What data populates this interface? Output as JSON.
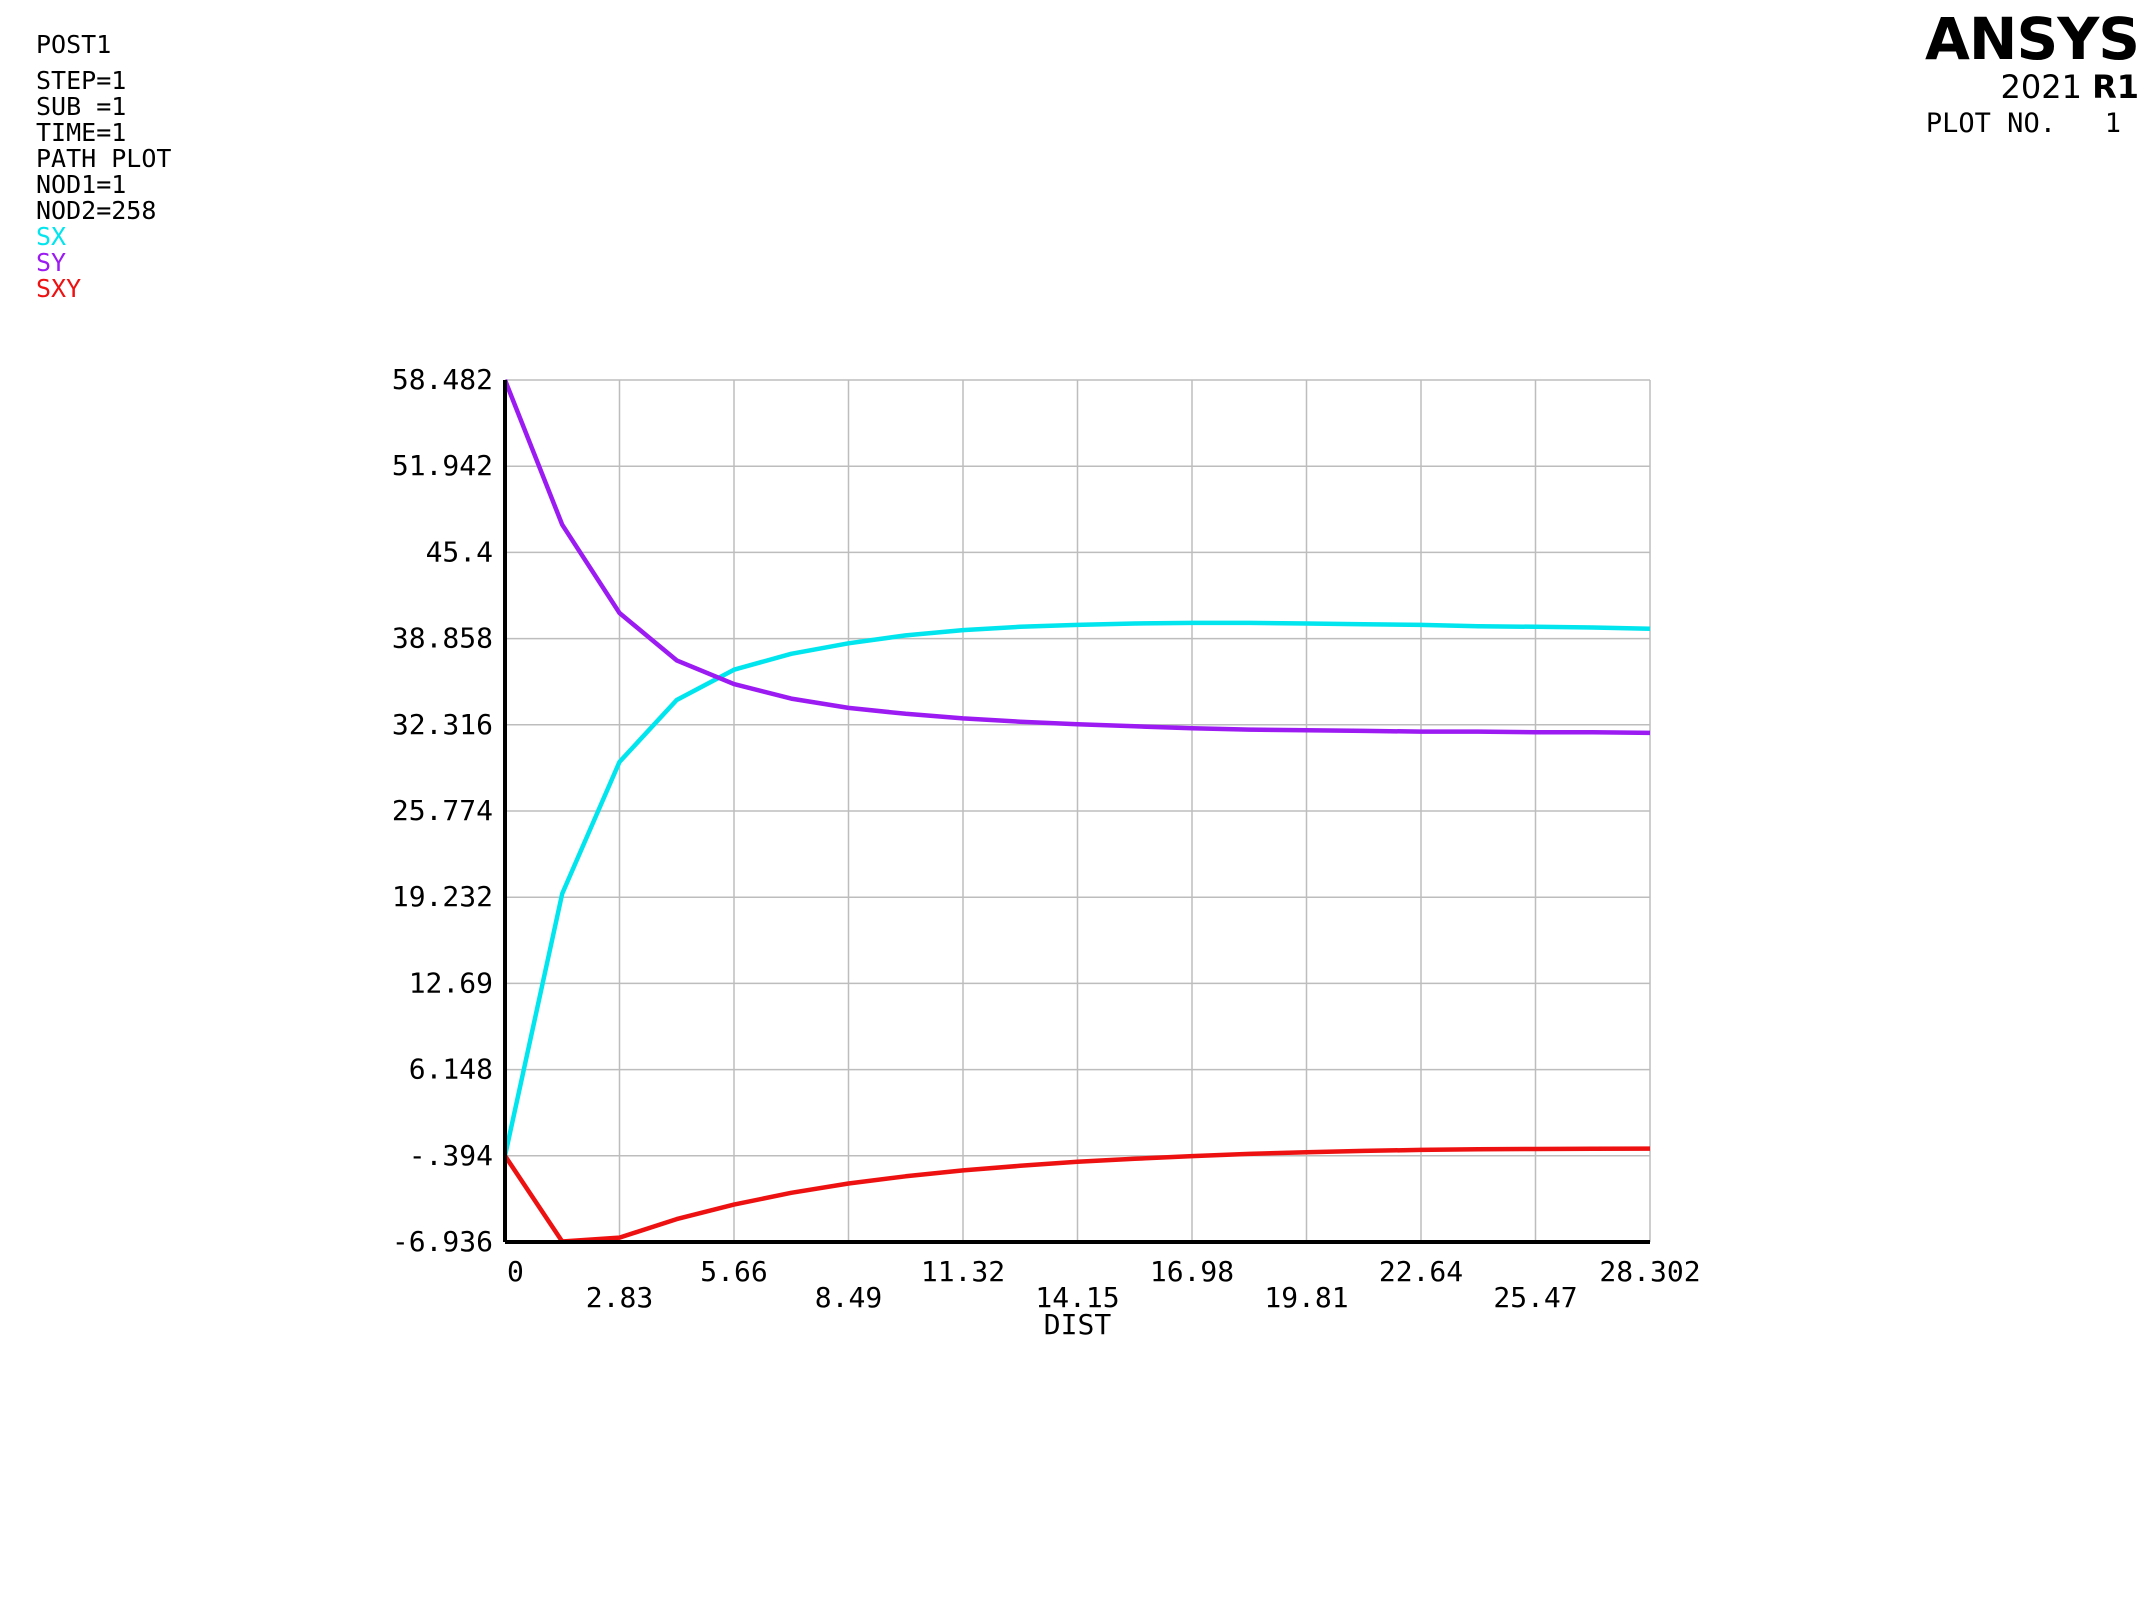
{
  "header": {
    "info_lines": [
      "POST1",
      "STEP=1",
      "SUB =1",
      "TIME=1",
      "PATH PLOT",
      "NOD1=1",
      "NOD2=258"
    ],
    "legend": [
      {
        "label": "SX",
        "color": "#00e5ee"
      },
      {
        "label": "SY",
        "color": "#9b1bf2"
      },
      {
        "label": "SXY",
        "color": "#ee1111"
      }
    ],
    "logo_brand": "ANSYS",
    "logo_year": "2021",
    "logo_release": "R1",
    "plot_no_label": "PLOT NO.",
    "plot_no_value": "1"
  },
  "chart_data": {
    "type": "line",
    "xlabel": "DIST",
    "ylabel": "",
    "xlim": [
      0,
      28.302
    ],
    "ylim": [
      -6.936,
      58.482
    ],
    "grid": true,
    "x_ticks": [
      "0",
      "2.83",
      "5.66",
      "8.49",
      "11.32",
      "14.15",
      "16.98",
      "19.81",
      "22.64",
      "25.47",
      "28.302"
    ],
    "y_ticks": [
      "-6.936",
      "-.394",
      "6.148",
      "12.69",
      "19.232",
      "25.774",
      "32.316",
      "38.858",
      "45.4",
      "51.942",
      "58.482"
    ],
    "x": [
      0,
      1.415,
      2.83,
      4.245,
      5.66,
      7.075,
      8.49,
      9.905,
      11.32,
      12.735,
      14.15,
      15.565,
      16.98,
      18.395,
      19.81,
      21.225,
      22.64,
      24.055,
      25.47,
      26.885,
      28.302
    ],
    "series": [
      {
        "name": "SX",
        "color": "#00e5ee",
        "values": [
          -0.394,
          19.5,
          29.5,
          34.2,
          36.5,
          37.7,
          38.5,
          39.1,
          39.5,
          39.75,
          39.9,
          40.0,
          40.05,
          40.05,
          40.0,
          39.95,
          39.9,
          39.8,
          39.75,
          39.7,
          39.6
        ]
      },
      {
        "name": "SY",
        "color": "#9b1bf2",
        "values": [
          58.482,
          47.5,
          40.8,
          37.2,
          35.4,
          34.3,
          33.6,
          33.15,
          32.8,
          32.55,
          32.35,
          32.2,
          32.05,
          31.95,
          31.9,
          31.85,
          31.8,
          31.8,
          31.75,
          31.75,
          31.7
        ]
      },
      {
        "name": "SXY",
        "color": "#ee1111",
        "values": [
          -0.394,
          -6.9,
          -6.6,
          -5.2,
          -4.1,
          -3.2,
          -2.5,
          -1.95,
          -1.5,
          -1.15,
          -0.85,
          -0.62,
          -0.42,
          -0.25,
          -0.12,
          -0.02,
          0.05,
          0.1,
          0.12,
          0.14,
          0.15
        ]
      }
    ]
  }
}
